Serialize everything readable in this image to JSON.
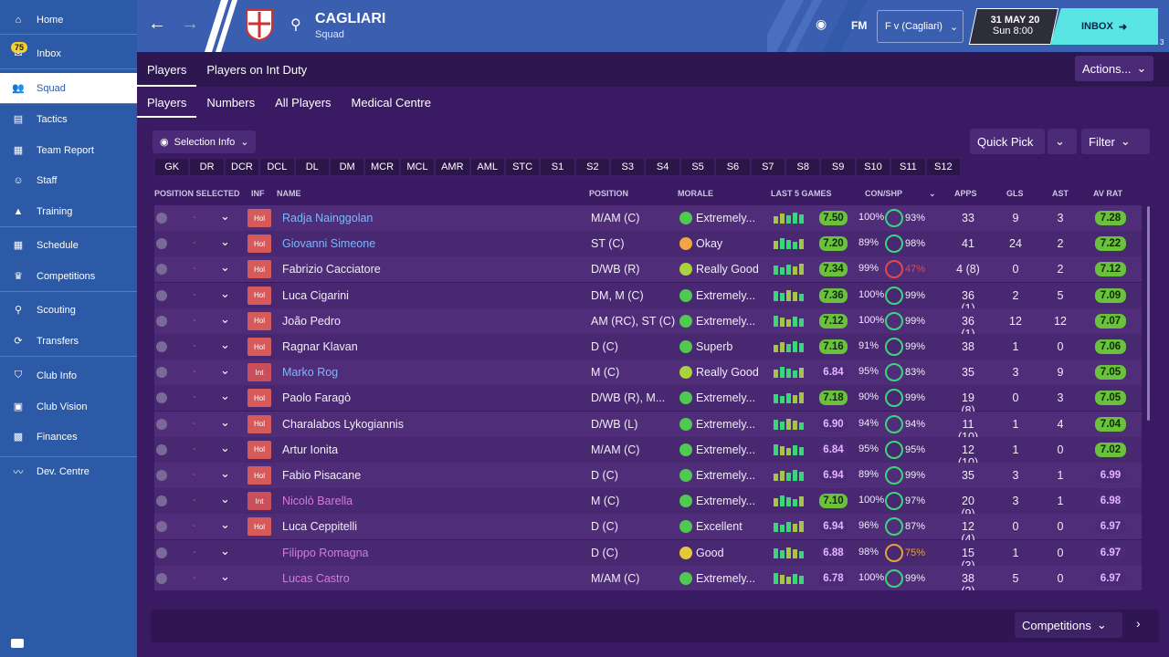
{
  "sidebar": {
    "items": [
      {
        "label": "Home",
        "icon": "home-icon"
      },
      {
        "label": "Inbox",
        "icon": "inbox-icon",
        "badge": "75"
      },
      {
        "label": "Squad",
        "icon": "squad-icon",
        "active": true
      },
      {
        "label": "Tactics",
        "icon": "tactics-icon"
      },
      {
        "label": "Team Report",
        "icon": "report-icon"
      },
      {
        "label": "Staff",
        "icon": "staff-icon"
      },
      {
        "label": "Training",
        "icon": "training-icon"
      },
      {
        "label": "Schedule",
        "icon": "schedule-icon"
      },
      {
        "label": "Competitions",
        "icon": "trophy-icon"
      },
      {
        "label": "Scouting",
        "icon": "search-icon"
      },
      {
        "label": "Transfers",
        "icon": "transfers-icon"
      },
      {
        "label": "Club Info",
        "icon": "shield-icon"
      },
      {
        "label": "Club Vision",
        "icon": "briefcase-icon"
      },
      {
        "label": "Finances",
        "icon": "finances-icon"
      },
      {
        "label": "Dev. Centre",
        "icon": "dev-centre-icon"
      }
    ]
  },
  "header": {
    "club_name": "CAGLIARI",
    "subtitle": "Squad",
    "fm_label": "FM",
    "fixture": "F v (Cagliari)",
    "date": "31 MAY 20",
    "time": "Sun 8:00",
    "inbox": "INBOX",
    "user_count": "3"
  },
  "tabs1": [
    "Players",
    "Players on Int Duty"
  ],
  "tabs2": [
    "Players",
    "Numbers",
    "All Players",
    "Medical Centre"
  ],
  "actions_label": "Actions...",
  "selection_info": "Selection Info",
  "quick_pick": "Quick Pick",
  "filter": "Filter",
  "positions": [
    "GK",
    "DR",
    "DCR",
    "DCL",
    "DL",
    "DM",
    "MCR",
    "MCL",
    "AMR",
    "AML",
    "STC",
    "S1",
    "S2",
    "S3",
    "S4",
    "S5",
    "S6",
    "S7",
    "S8",
    "S9",
    "S10",
    "S11",
    "S12"
  ],
  "columns": {
    "position_selected": "POSITION SELECTED",
    "inf": "INF",
    "name": "NAME",
    "position": "POSITION",
    "morale": "MORALE",
    "last5": "LAST 5 GAMES",
    "conshp": "CON/SHP",
    "apps": "APPS",
    "gls": "GLS",
    "ast": "AST",
    "avrat": "AV RAT"
  },
  "players": [
    {
      "name": "Radja Nainggolan",
      "inf": "Hol",
      "pos": "M/AM (C)",
      "morale": "Extremely...",
      "last": "7.50",
      "con": "100%",
      "shp": "93%",
      "apps": "33",
      "gls": "9",
      "ast": "3",
      "av": "7.28",
      "name_color": "#7fb6ff"
    },
    {
      "name": "Giovanni Simeone",
      "inf": "Hol",
      "pos": "ST (C)",
      "morale": "Okay",
      "last": "7.20",
      "con": "89%",
      "shp": "98%",
      "apps": "41",
      "gls": "24",
      "ast": "2",
      "av": "7.22",
      "name_color": "#7fb6ff"
    },
    {
      "name": "Fabrizio Cacciatore",
      "inf": "Hol",
      "pos": "D/WB (R)",
      "morale": "Really Good",
      "last": "7.34",
      "con": "99%",
      "shp": "47%",
      "apps": "4 (8)",
      "gls": "0",
      "ast": "2",
      "av": "7.12",
      "name_color": "#f1ecf8"
    },
    {
      "name": "Luca Cigarini",
      "inf": "Hol",
      "pos": "DM, M (C)",
      "morale": "Extremely...",
      "last": "7.36",
      "con": "100%",
      "shp": "99%",
      "apps": "36 (1)",
      "gls": "2",
      "ast": "5",
      "av": "7.09",
      "name_color": "#f1ecf8"
    },
    {
      "name": "João Pedro",
      "inf": "Hol",
      "pos": "AM (RC), ST (C)",
      "morale": "Extremely...",
      "last": "7.12",
      "con": "100%",
      "shp": "99%",
      "apps": "36 (1)",
      "gls": "12",
      "ast": "12",
      "av": "7.07",
      "name_color": "#f1ecf8"
    },
    {
      "name": "Ragnar Klavan",
      "inf": "Hol",
      "pos": "D (C)",
      "morale": "Superb",
      "last": "7.16",
      "con": "91%",
      "shp": "99%",
      "apps": "38",
      "gls": "1",
      "ast": "0",
      "av": "7.06",
      "name_color": "#f1ecf8"
    },
    {
      "name": "Marko Rog",
      "inf": "Int",
      "pos": "M (C)",
      "morale": "Really Good",
      "last": "6.84",
      "con": "95%",
      "shp": "83%",
      "apps": "35",
      "gls": "3",
      "ast": "9",
      "av": "7.05",
      "name_color": "#7fb6ff"
    },
    {
      "name": "Paolo Faragò",
      "inf": "Hol",
      "pos": "D/WB (R), M...",
      "morale": "Extremely...",
      "last": "7.18",
      "con": "90%",
      "shp": "99%",
      "apps": "19 (8)",
      "gls": "0",
      "ast": "3",
      "av": "7.05",
      "name_color": "#f1ecf8"
    },
    {
      "name": "Charalabos Lykogiannis",
      "inf": "Hol",
      "pos": "D/WB (L)",
      "morale": "Extremely...",
      "last": "6.90",
      "con": "94%",
      "shp": "94%",
      "apps": "11 (10)",
      "gls": "1",
      "ast": "4",
      "av": "7.04",
      "name_color": "#f1ecf8"
    },
    {
      "name": "Artur Ionita",
      "inf": "Hol",
      "pos": "M/AM (C)",
      "morale": "Extremely...",
      "last": "6.84",
      "con": "95%",
      "shp": "95%",
      "apps": "12 (10)",
      "gls": "1",
      "ast": "0",
      "av": "7.02",
      "name_color": "#f1ecf8"
    },
    {
      "name": "Fabio Pisacane",
      "inf": "Hol",
      "pos": "D (C)",
      "morale": "Extremely...",
      "last": "6.94",
      "con": "89%",
      "shp": "99%",
      "apps": "35",
      "gls": "3",
      "ast": "1",
      "av": "6.99",
      "name_color": "#f1ecf8"
    },
    {
      "name": "Nicolò Barella",
      "inf": "Int",
      "pos": "M (C)",
      "morale": "Extremely...",
      "last": "7.10",
      "con": "100%",
      "shp": "97%",
      "apps": "20 (9)",
      "gls": "3",
      "ast": "1",
      "av": "6.98",
      "name_color": "#d67ae0"
    },
    {
      "name": "Luca Ceppitelli",
      "inf": "Hol",
      "pos": "D (C)",
      "morale": "Excellent",
      "last": "6.94",
      "con": "96%",
      "shp": "87%",
      "apps": "12 (4)",
      "gls": "0",
      "ast": "0",
      "av": "6.97",
      "name_color": "#f1ecf8"
    },
    {
      "name": "Filippo Romagna",
      "inf": "",
      "pos": "D (C)",
      "morale": "Good",
      "last": "6.88",
      "con": "98%",
      "shp": "75%",
      "apps": "15 (3)",
      "gls": "1",
      "ast": "0",
      "av": "6.97",
      "name_color": "#d67ae0"
    },
    {
      "name": "Lucas Castro",
      "inf": "",
      "pos": "M/AM (C)",
      "morale": "Extremely...",
      "last": "6.78",
      "con": "100%",
      "shp": "99%",
      "apps": "38 (2)",
      "gls": "5",
      "ast": "0",
      "av": "6.97",
      "name_color": "#d67ae0"
    }
  ],
  "bottom": {
    "competitions": "Competitions"
  }
}
